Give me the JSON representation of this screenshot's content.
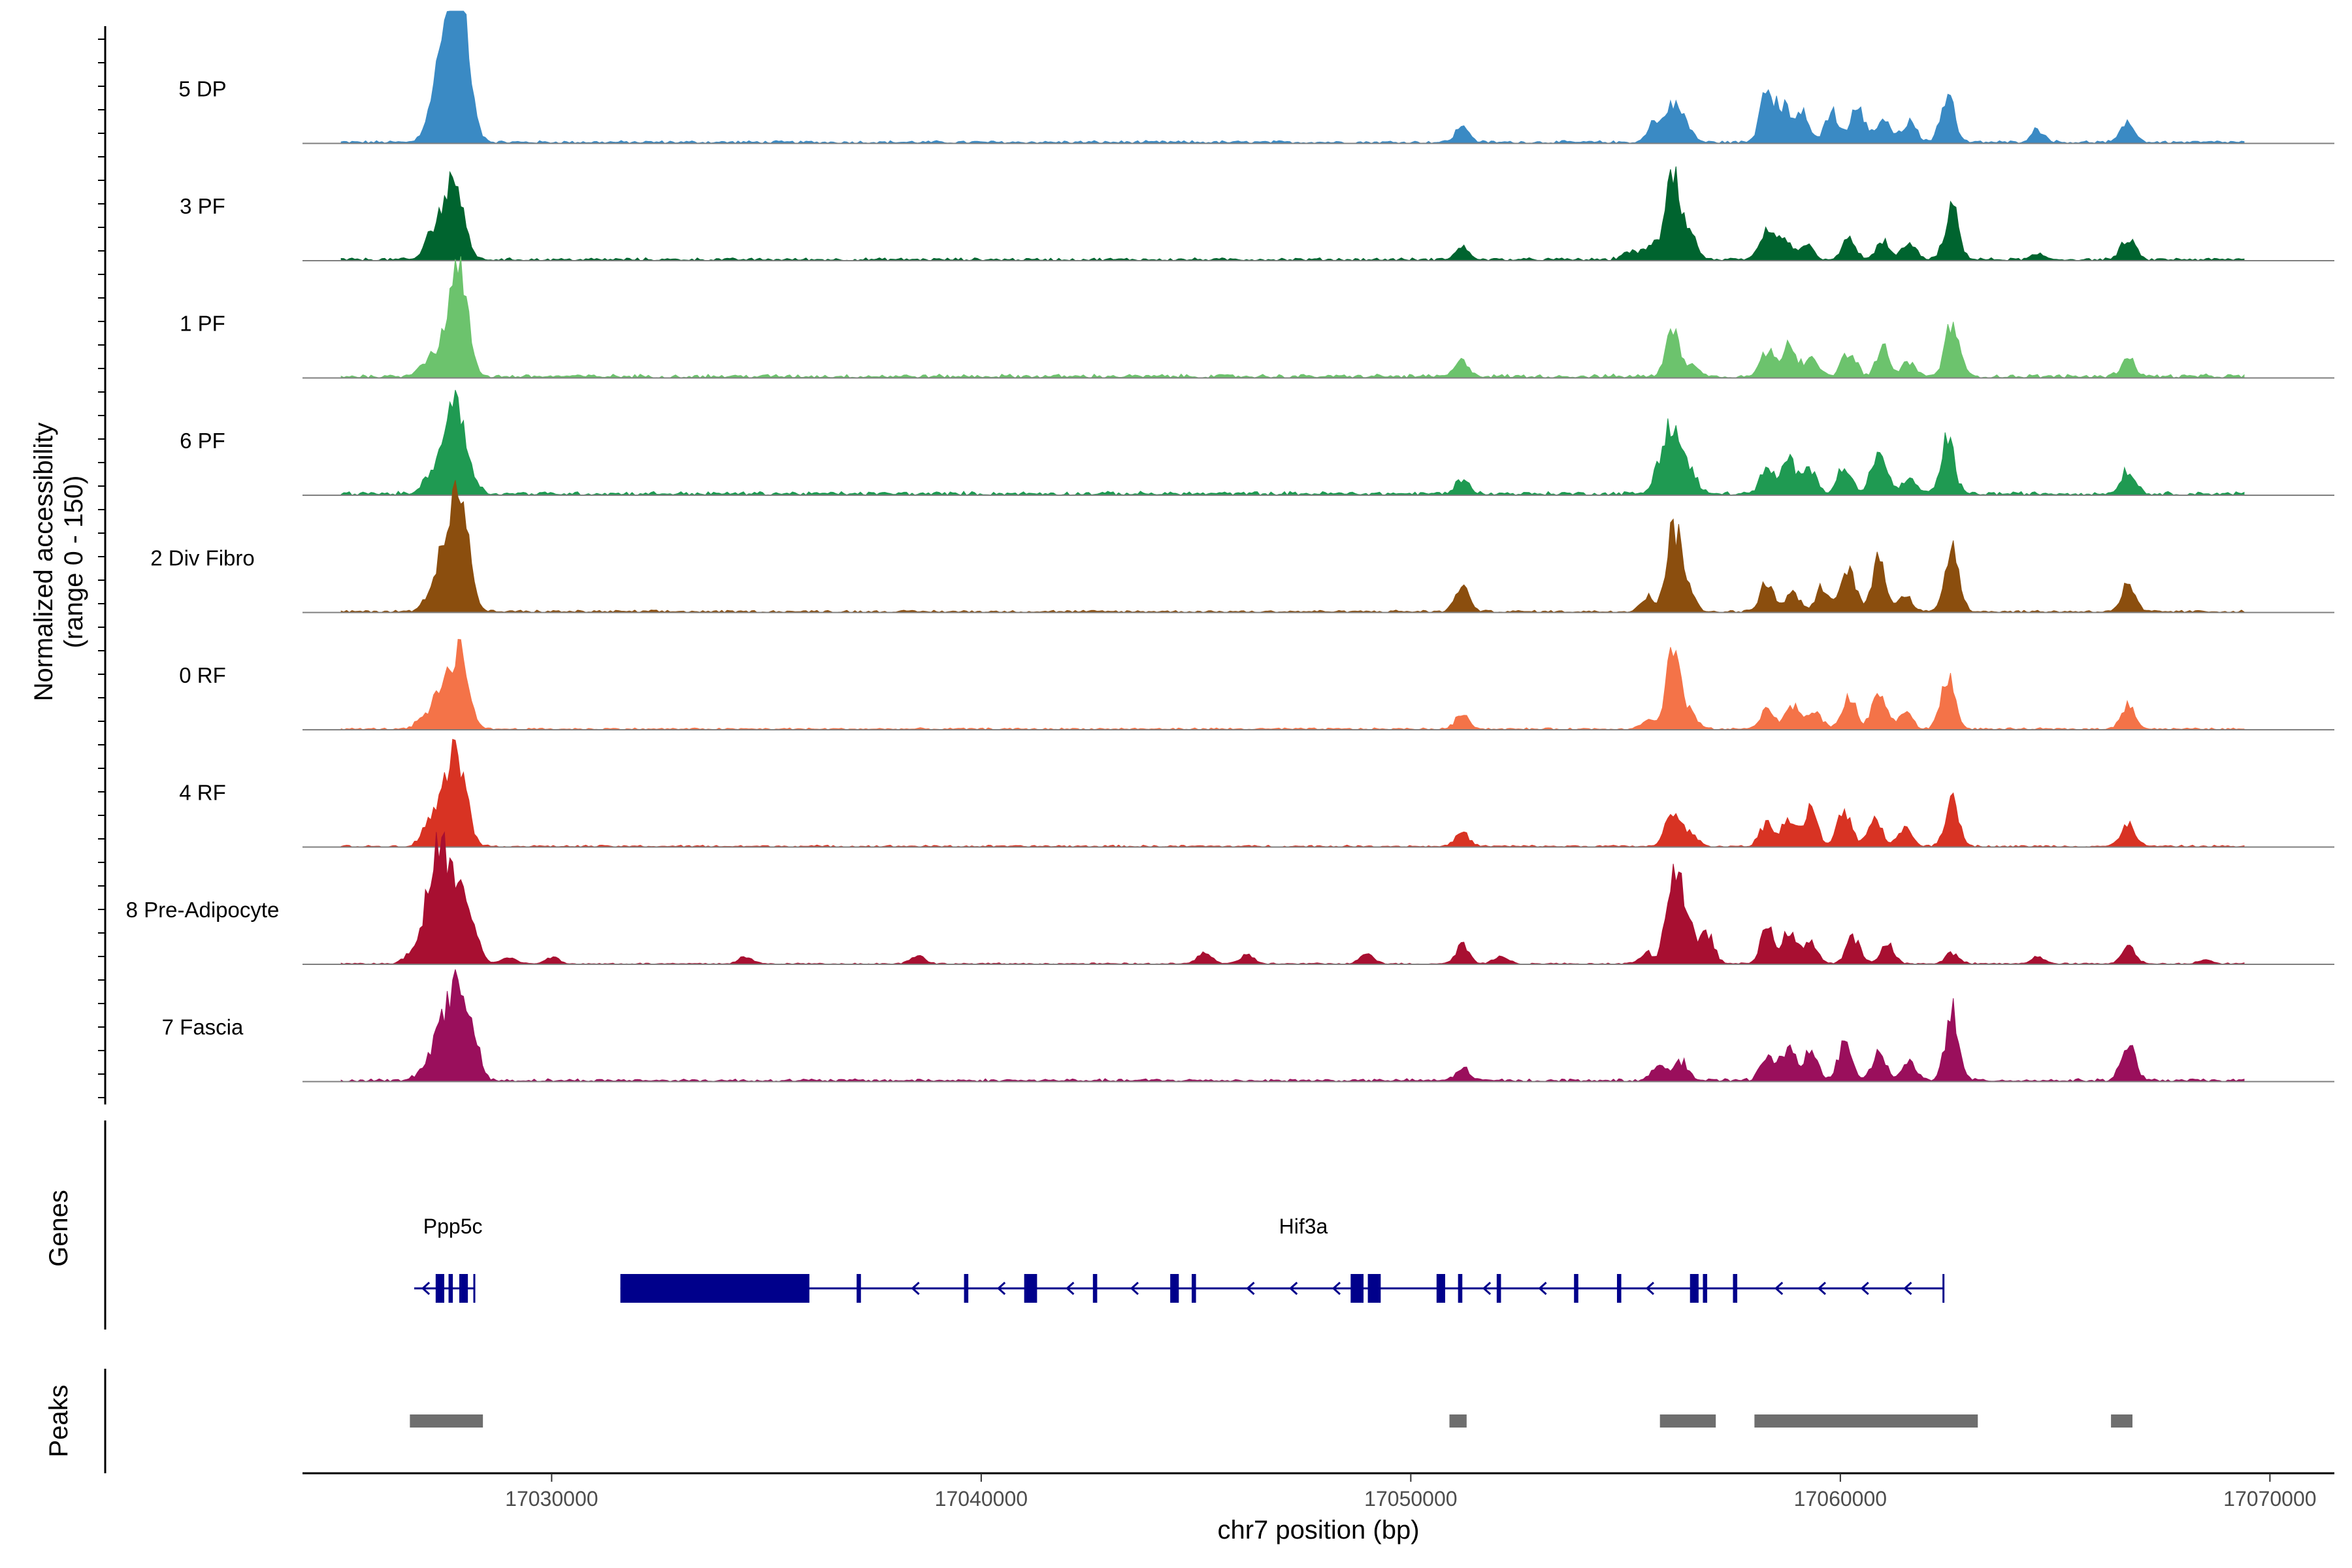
{
  "chart_data": {
    "type": "area",
    "title": "",
    "ylabel_line1": "Normalized accessibility",
    "ylabel_line2": "(range 0 - 150)",
    "ylim": [
      0,
      150
    ],
    "xlabel": "chr7 position (bp)",
    "xlim": [
      17024200,
      17071500
    ],
    "xticks": [
      17030000,
      17040000,
      17050000,
      17060000,
      17070000
    ],
    "xtick_labels": [
      "17030000",
      "17040000",
      "17050000",
      "17060000",
      "17070000"
    ],
    "genes_label": "Genes",
    "peaks_label": "Peaks",
    "tracks": [
      {
        "name": "5 DP",
        "color": "#3A8AC4",
        "baseline_noise": 3,
        "peaks": [
          [
            17027200,
            40
          ],
          [
            17027450,
            55
          ],
          [
            17027650,
            95
          ],
          [
            17027800,
            100
          ],
          [
            17027950,
            80
          ],
          [
            17028200,
            15
          ],
          [
            17051200,
            18
          ],
          [
            17055700,
            25
          ],
          [
            17056100,
            38
          ],
          [
            17056400,
            20
          ],
          [
            17058300,
            60
          ],
          [
            17058700,
            38
          ],
          [
            17059100,
            32
          ],
          [
            17059800,
            35
          ],
          [
            17060400,
            40
          ],
          [
            17061000,
            28
          ],
          [
            17061600,
            25
          ],
          [
            17062500,
            55
          ],
          [
            17064600,
            15
          ],
          [
            17066700,
            22
          ]
        ]
      },
      {
        "name": "3 PF",
        "color": "#00642F",
        "baseline_noise": 3,
        "peaks": [
          [
            17027200,
            25
          ],
          [
            17027450,
            38
          ],
          [
            17027700,
            58
          ],
          [
            17027900,
            48
          ],
          [
            17051200,
            14
          ],
          [
            17055100,
            10
          ],
          [
            17055600,
            18
          ],
          [
            17056100,
            95
          ],
          [
            17056500,
            28
          ],
          [
            17058300,
            32
          ],
          [
            17058700,
            24
          ],
          [
            17059200,
            18
          ],
          [
            17060200,
            22
          ],
          [
            17061000,
            20
          ],
          [
            17061600,
            18
          ],
          [
            17062600,
            58
          ],
          [
            17064600,
            6
          ],
          [
            17066700,
            24
          ]
        ]
      },
      {
        "name": "1 PF",
        "color": "#6CC36D",
        "baseline_noise": 4,
        "peaks": [
          [
            17027000,
            12
          ],
          [
            17027300,
            22
          ],
          [
            17027600,
            38
          ],
          [
            17027800,
            78
          ],
          [
            17028000,
            48
          ],
          [
            17051200,
            18
          ],
          [
            17056100,
            55
          ],
          [
            17056600,
            12
          ],
          [
            17058300,
            28
          ],
          [
            17058800,
            40
          ],
          [
            17059300,
            22
          ],
          [
            17060200,
            30
          ],
          [
            17061000,
            32
          ],
          [
            17061600,
            15
          ],
          [
            17062600,
            62
          ],
          [
            17066700,
            22
          ]
        ]
      },
      {
        "name": "6 PF",
        "color": "#1F9A52",
        "baseline_noise": 4,
        "peaks": [
          [
            17027100,
            14
          ],
          [
            17027400,
            34
          ],
          [
            17027650,
            62
          ],
          [
            17027850,
            65
          ],
          [
            17028100,
            25
          ],
          [
            17051200,
            17
          ],
          [
            17055800,
            30
          ],
          [
            17056100,
            78
          ],
          [
            17056500,
            28
          ],
          [
            17058300,
            28
          ],
          [
            17058800,
            38
          ],
          [
            17059300,
            30
          ],
          [
            17060100,
            32
          ],
          [
            17060900,
            58
          ],
          [
            17061600,
            18
          ],
          [
            17062500,
            62
          ],
          [
            17066700,
            28
          ]
        ]
      },
      {
        "name": "2 Div Fibro",
        "color": "#8B4E0E",
        "baseline_noise": 2.5,
        "peaks": [
          [
            17027100,
            12
          ],
          [
            17027400,
            48
          ],
          [
            17027650,
            72
          ],
          [
            17027850,
            90
          ],
          [
            17028050,
            40
          ],
          [
            17051200,
            28
          ],
          [
            17055500,
            18
          ],
          [
            17056100,
            90
          ],
          [
            17056400,
            35
          ],
          [
            17058300,
            36
          ],
          [
            17058900,
            22
          ],
          [
            17059600,
            28
          ],
          [
            17060200,
            50
          ],
          [
            17060900,
            58
          ],
          [
            17061500,
            20
          ],
          [
            17062600,
            78
          ],
          [
            17066700,
            30
          ]
        ]
      },
      {
        "name": "0 RF",
        "color": "#F47348",
        "baseline_noise": 2,
        "peaks": [
          [
            17027000,
            12
          ],
          [
            17027300,
            22
          ],
          [
            17027550,
            42
          ],
          [
            17027800,
            58
          ],
          [
            17028000,
            45
          ],
          [
            17051200,
            18
          ],
          [
            17055500,
            10
          ],
          [
            17056100,
            85
          ],
          [
            17056500,
            20
          ],
          [
            17058300,
            22
          ],
          [
            17058900,
            28
          ],
          [
            17059400,
            22
          ],
          [
            17060200,
            38
          ],
          [
            17060900,
            42
          ],
          [
            17061500,
            20
          ],
          [
            17062500,
            62
          ],
          [
            17066700,
            28
          ]
        ]
      },
      {
        "name": "4 RF",
        "color": "#D83323",
        "baseline_noise": 2,
        "peaks": [
          [
            17027100,
            22
          ],
          [
            17027400,
            32
          ],
          [
            17027600,
            40
          ],
          [
            17027800,
            75
          ],
          [
            17028000,
            35
          ],
          [
            17051200,
            15
          ],
          [
            17056100,
            42
          ],
          [
            17056500,
            15
          ],
          [
            17058300,
            28
          ],
          [
            17058800,
            30
          ],
          [
            17059300,
            42
          ],
          [
            17060100,
            42
          ],
          [
            17060800,
            32
          ],
          [
            17061500,
            22
          ],
          [
            17062600,
            52
          ],
          [
            17066700,
            28
          ]
        ]
      },
      {
        "name": "8 Pre-Adipocyte",
        "color": "#A80F31",
        "baseline_noise": 1.5,
        "peaks": [
          [
            17026700,
            10
          ],
          [
            17027100,
            55
          ],
          [
            17027350,
            105
          ],
          [
            17027650,
            85
          ],
          [
            17027950,
            60
          ],
          [
            17028200,
            28
          ],
          [
            17029000,
            8
          ],
          [
            17030000,
            8
          ],
          [
            17034500,
            8
          ],
          [
            17038500,
            10
          ],
          [
            17045200,
            14
          ],
          [
            17046200,
            10
          ],
          [
            17049000,
            12
          ],
          [
            17051200,
            22
          ],
          [
            17052100,
            10
          ],
          [
            17055500,
            12
          ],
          [
            17056100,
            102
          ],
          [
            17056400,
            55
          ],
          [
            17056900,
            35
          ],
          [
            17058300,
            40
          ],
          [
            17058800,
            35
          ],
          [
            17059300,
            28
          ],
          [
            17060300,
            30
          ],
          [
            17061100,
            22
          ],
          [
            17062600,
            12
          ],
          [
            17064600,
            8
          ],
          [
            17066700,
            20
          ],
          [
            17068500,
            5
          ]
        ]
      },
      {
        "name": "7 Fascia",
        "color": "#9A0F5C",
        "baseline_noise": 3,
        "peaks": [
          [
            17027000,
            12
          ],
          [
            17027300,
            38
          ],
          [
            17027600,
            68
          ],
          [
            17027900,
            95
          ],
          [
            17028200,
            40
          ],
          [
            17051200,
            14
          ],
          [
            17055800,
            18
          ],
          [
            17056300,
            22
          ],
          [
            17058300,
            28
          ],
          [
            17058800,
            40
          ],
          [
            17059300,
            32
          ],
          [
            17060100,
            42
          ],
          [
            17060900,
            32
          ],
          [
            17061600,
            22
          ],
          [
            17062600,
            78
          ],
          [
            17066700,
            42
          ]
        ]
      }
    ],
    "genes": [
      {
        "name": "Ppp5c",
        "label_pos": 17027700,
        "strand": "-",
        "start": 17026800,
        "end": 17028200,
        "exons": [
          [
            17027300,
            17027500
          ],
          [
            17027600,
            17027700
          ],
          [
            17027850,
            17028050
          ]
        ],
        "utr": [],
        "arrows": [
          17027000
        ]
      },
      {
        "name": "Hif3a",
        "label_pos": 17047500,
        "strand": "-",
        "start": 17031600,
        "end": 17062400,
        "exons": [
          [
            17031600,
            17036000
          ],
          [
            17037100,
            17037200
          ],
          [
            17039600,
            17039700
          ],
          [
            17041000,
            17041300
          ],
          [
            17042600,
            17042700
          ],
          [
            17044400,
            17044600
          ],
          [
            17044900,
            17045000
          ],
          [
            17048600,
            17048900
          ],
          [
            17049000,
            17049300
          ],
          [
            17050600,
            17050800
          ],
          [
            17051100,
            17051200
          ],
          [
            17052000,
            17052100
          ],
          [
            17053800,
            17053900
          ],
          [
            17054800,
            17054900
          ],
          [
            17056500,
            17056700
          ],
          [
            17056800,
            17056900
          ],
          [
            17057500,
            17057600
          ]
        ],
        "utr": [
          [
            17031600,
            17036000
          ]
        ],
        "arrows": [
          17033700,
          17038400,
          17040400,
          17042000,
          17043500,
          17046200,
          17047200,
          17048200,
          17051700,
          17053000,
          17055500,
          17058500,
          17059500,
          17060500,
          17061500
        ]
      }
    ],
    "peaks": [
      [
        17026700,
        17028400
      ],
      [
        17050900,
        17051300
      ],
      [
        17055800,
        17057100
      ],
      [
        17058000,
        17063200
      ],
      [
        17066300,
        17066800
      ]
    ]
  }
}
